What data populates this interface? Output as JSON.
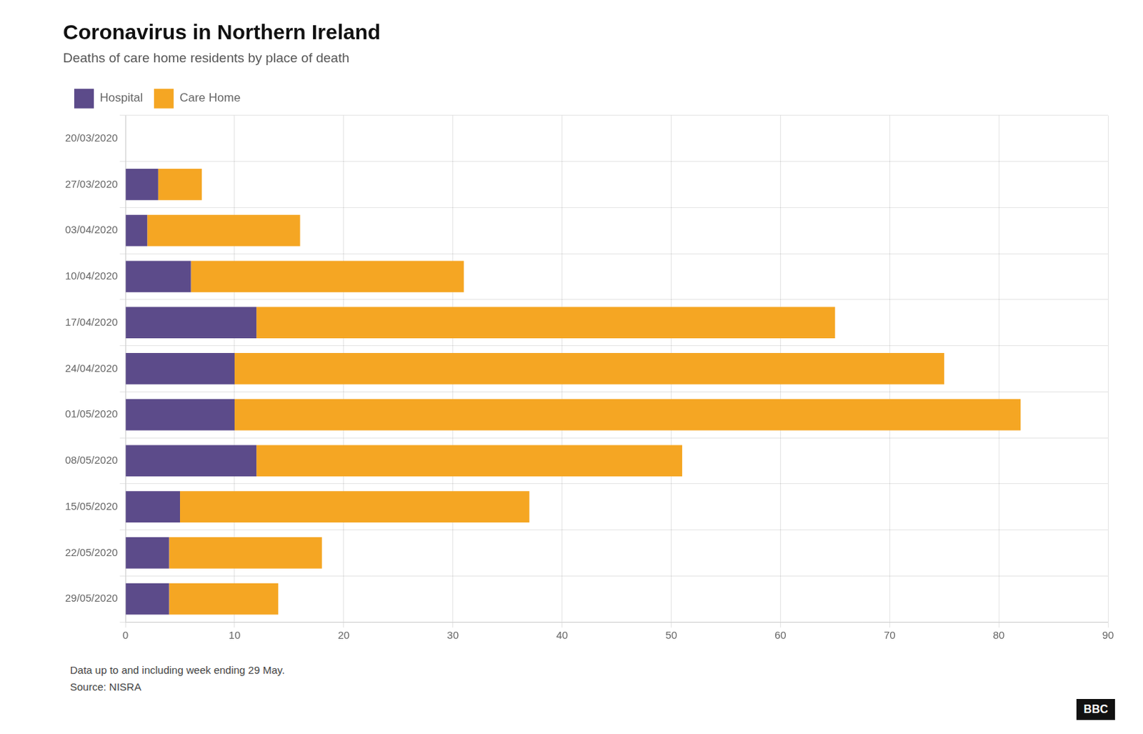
{
  "chart_data": {
    "type": "bar",
    "orientation": "horizontal",
    "stacked": true,
    "title": "Coronavirus in Northern Ireland",
    "subtitle": "Deaths of care home residents by place of death",
    "categories": [
      "20/03/2020",
      "27/03/2020",
      "03/04/2020",
      "10/04/2020",
      "17/04/2020",
      "24/04/2020",
      "01/05/2020",
      "08/05/2020",
      "15/05/2020",
      "22/05/2020",
      "29/05/2020"
    ],
    "series": [
      {
        "name": "Hospital",
        "color": "#5c4b8a",
        "values": [
          0,
          3,
          2,
          6,
          12,
          10,
          10,
          12,
          5,
          4,
          4
        ]
      },
      {
        "name": "Care Home",
        "color": "#f5a623",
        "values": [
          0,
          4,
          14,
          25,
          53,
          65,
          72,
          39,
          32,
          14,
          10
        ]
      }
    ],
    "xlim": [
      0,
      90
    ],
    "xticks": [
      0,
      10,
      20,
      30,
      40,
      50,
      60,
      70,
      80,
      90
    ],
    "grid": true,
    "legend": "top",
    "annotations": [
      "Data up to and including week ending 29 May.",
      "Source: NISRA",
      "BBC"
    ]
  }
}
